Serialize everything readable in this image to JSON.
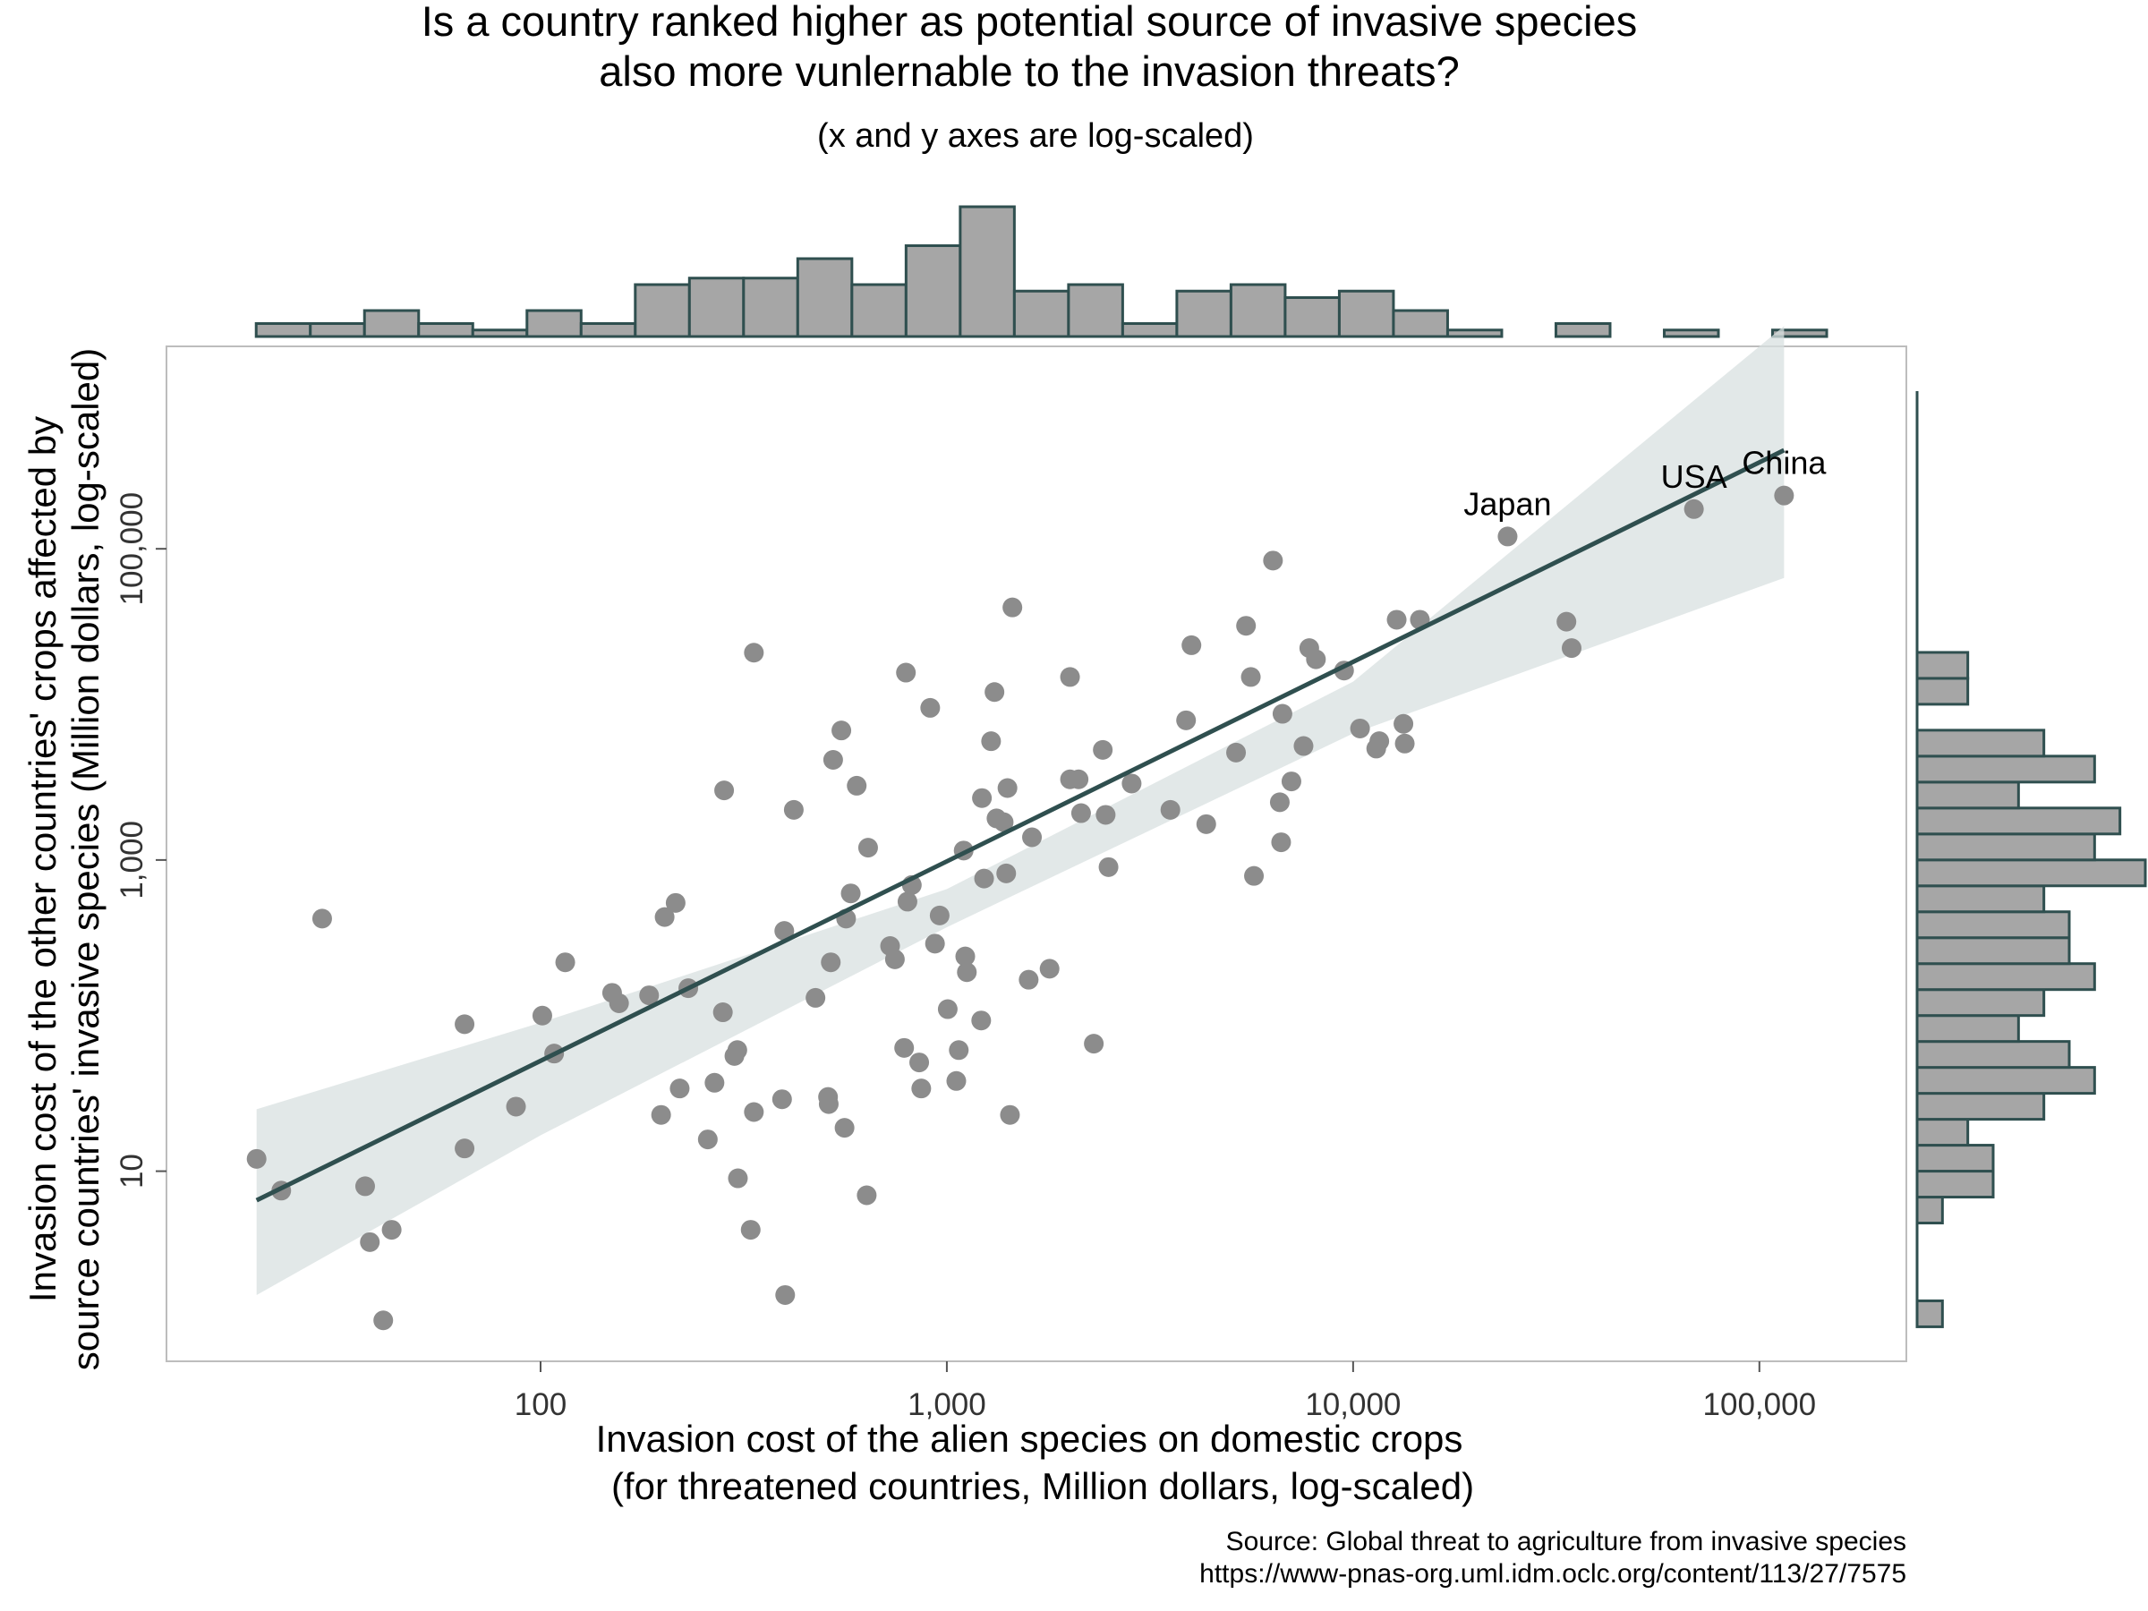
{
  "title_lines": [
    "Is a country ranked higher as potential source of invasive species",
    "also more vunlernable to the invasion threats?"
  ],
  "subtitle": "(x and y axes are log-scaled)",
  "source_lines": [
    "Source: Global threat to agriculture from invasive species",
    "https://www-pnas-org.uml.idm.oclc.org/content/113/27/7575"
  ],
  "colors": {
    "point": "#8c8c8c",
    "line": "#2f4f4f",
    "band": "#d8e0e0",
    "hist_fill": "#a6a6a6",
    "hist_stroke": "#2f4f4f",
    "frame": "#bdbdbd"
  },
  "chart_data": {
    "type": "scatter",
    "x_scale": "log",
    "y_scale": "log",
    "xlabel_lines": [
      "Invasion cost of the alien species on domestic crops",
      "(for threatened countries, Million dollars, log-scaled)"
    ],
    "ylabel_lines": [
      "Invasion cost of the other countries' crops affected by",
      "source countries' invasive species (Million dollars, log-scaled)"
    ],
    "xlim": [
      12,
      230000
    ],
    "ylim": [
      0.6,
      2000000
    ],
    "x_ticks": [
      100,
      1000,
      10000,
      100000
    ],
    "x_tick_labels": [
      "100",
      "1,000",
      "10,000",
      "100,000"
    ],
    "y_ticks": [
      10,
      1000,
      100000
    ],
    "y_tick_labels": [
      "10",
      "1,000",
      "100,000"
    ],
    "points": [
      {
        "x": 20,
        "y": 12
      },
      {
        "x": 23,
        "y": 7.5
      },
      {
        "x": 29,
        "y": 420
      },
      {
        "x": 37,
        "y": 8
      },
      {
        "x": 38,
        "y": 3.5
      },
      {
        "x": 41,
        "y": 1.1
      },
      {
        "x": 43,
        "y": 4.2
      },
      {
        "x": 65,
        "y": 88
      },
      {
        "x": 65,
        "y": 14
      },
      {
        "x": 87,
        "y": 26
      },
      {
        "x": 101,
        "y": 100
      },
      {
        "x": 108,
        "y": 57
      },
      {
        "x": 115,
        "y": 220
      },
      {
        "x": 150,
        "y": 140
      },
      {
        "x": 156,
        "y": 120
      },
      {
        "x": 185,
        "y": 135
      },
      {
        "x": 198,
        "y": 23
      },
      {
        "x": 202,
        "y": 430
      },
      {
        "x": 215,
        "y": 530
      },
      {
        "x": 220,
        "y": 34
      },
      {
        "x": 231,
        "y": 150
      },
      {
        "x": 258,
        "y": 16
      },
      {
        "x": 268,
        "y": 37
      },
      {
        "x": 281,
        "y": 105
      },
      {
        "x": 283,
        "y": 2800
      },
      {
        "x": 300,
        "y": 55
      },
      {
        "x": 305,
        "y": 60
      },
      {
        "x": 306,
        "y": 9
      },
      {
        "x": 329,
        "y": 4.2
      },
      {
        "x": 335,
        "y": 24
      },
      {
        "x": 335,
        "y": 21500
      },
      {
        "x": 393,
        "y": 29
      },
      {
        "x": 398,
        "y": 350
      },
      {
        "x": 400,
        "y": 1.6
      },
      {
        "x": 420,
        "y": 2100
      },
      {
        "x": 475,
        "y": 130
      },
      {
        "x": 510,
        "y": 30
      },
      {
        "x": 512,
        "y": 27
      },
      {
        "x": 518,
        "y": 220
      },
      {
        "x": 525,
        "y": 4400
      },
      {
        "x": 550,
        "y": 6800
      },
      {
        "x": 560,
        "y": 19
      },
      {
        "x": 565,
        "y": 420
      },
      {
        "x": 580,
        "y": 610
      },
      {
        "x": 600,
        "y": 3000
      },
      {
        "x": 635,
        "y": 7
      },
      {
        "x": 640,
        "y": 1200
      },
      {
        "x": 725,
        "y": 280
      },
      {
        "x": 745,
        "y": 230
      },
      {
        "x": 785,
        "y": 62
      },
      {
        "x": 793,
        "y": 16000
      },
      {
        "x": 800,
        "y": 540
      },
      {
        "x": 820,
        "y": 690
      },
      {
        "x": 855,
        "y": 50
      },
      {
        "x": 865,
        "y": 34
      },
      {
        "x": 910,
        "y": 9500
      },
      {
        "x": 935,
        "y": 290
      },
      {
        "x": 960,
        "y": 440
      },
      {
        "x": 1005,
        "y": 110
      },
      {
        "x": 1055,
        "y": 38
      },
      {
        "x": 1070,
        "y": 60
      },
      {
        "x": 1100,
        "y": 1150
      },
      {
        "x": 1110,
        "y": 240
      },
      {
        "x": 1120,
        "y": 190
      },
      {
        "x": 1215,
        "y": 93
      },
      {
        "x": 1220,
        "y": 2500
      },
      {
        "x": 1235,
        "y": 760
      },
      {
        "x": 1285,
        "y": 5800
      },
      {
        "x": 1310,
        "y": 12000
      },
      {
        "x": 1325,
        "y": 1850
      },
      {
        "x": 1380,
        "y": 1750
      },
      {
        "x": 1400,
        "y": 820
      },
      {
        "x": 1410,
        "y": 2900
      },
      {
        "x": 1430,
        "y": 23
      },
      {
        "x": 1450,
        "y": 42000
      },
      {
        "x": 1590,
        "y": 170
      },
      {
        "x": 1620,
        "y": 1400
      },
      {
        "x": 1790,
        "y": 200
      },
      {
        "x": 2010,
        "y": 15000
      },
      {
        "x": 2010,
        "y": 3300
      },
      {
        "x": 2110,
        "y": 3300
      },
      {
        "x": 2140,
        "y": 2000
      },
      {
        "x": 2300,
        "y": 66
      },
      {
        "x": 2420,
        "y": 5100
      },
      {
        "x": 2460,
        "y": 1950
      },
      {
        "x": 2500,
        "y": 900
      },
      {
        "x": 2850,
        "y": 3100
      },
      {
        "x": 3550,
        "y": 2100
      },
      {
        "x": 3880,
        "y": 7900
      },
      {
        "x": 4000,
        "y": 24000
      },
      {
        "x": 4350,
        "y": 1700
      },
      {
        "x": 5150,
        "y": 4900
      },
      {
        "x": 5450,
        "y": 32000
      },
      {
        "x": 5600,
        "y": 15000
      },
      {
        "x": 5700,
        "y": 790
      },
      {
        "x": 6350,
        "y": 84000
      },
      {
        "x": 6600,
        "y": 2350
      },
      {
        "x": 6650,
        "y": 1300
      },
      {
        "x": 6700,
        "y": 8700
      },
      {
        "x": 7050,
        "y": 3200
      },
      {
        "x": 7550,
        "y": 5400
      },
      {
        "x": 7800,
        "y": 23000
      },
      {
        "x": 8100,
        "y": 19500
      },
      {
        "x": 9500,
        "y": 16500
      },
      {
        "x": 10400,
        "y": 7000
      },
      {
        "x": 11400,
        "y": 5200
      },
      {
        "x": 11600,
        "y": 5800
      },
      {
        "x": 12800,
        "y": 35000
      },
      {
        "x": 13300,
        "y": 7500
      },
      {
        "x": 13400,
        "y": 5600
      },
      {
        "x": 14600,
        "y": 35000
      },
      {
        "x": 24000,
        "y": 120000
      },
      {
        "x": 33500,
        "y": 34000
      },
      {
        "x": 34500,
        "y": 23000
      },
      {
        "x": 69000,
        "y": 180000
      },
      {
        "x": 115000,
        "y": 220000
      }
    ],
    "annotations": [
      {
        "text": "Japan",
        "x": 24000,
        "y": 120000
      },
      {
        "text": "USA",
        "x": 69000,
        "y": 180000
      },
      {
        "text": "China",
        "x": 115000,
        "y": 220000
      }
    ],
    "fit_line": {
      "x": [
        20,
        115000
      ],
      "y": [
        6.5,
        430000
      ]
    },
    "conf_band": {
      "x": [
        20,
        100,
        1000,
        10000,
        115000
      ],
      "lower": [
        1.6,
        17,
        370,
        6500,
        65000
      ],
      "upper": [
        25,
        90,
        650,
        14000,
        2700000
      ]
    },
    "x_hist": {
      "bin_log_start": 1.3,
      "bin_width": 0.1333,
      "counts": [
        1,
        1,
        2,
        1,
        0.5,
        2,
        1,
        4,
        4.5,
        4.5,
        6,
        4,
        7,
        10,
        3.5,
        4,
        1,
        3.5,
        4,
        3,
        3.5,
        2,
        0.5,
        0,
        1,
        0,
        0.5,
        0,
        0.5
      ]
    },
    "y_hist": {
      "bin_log_start": 0,
      "bin_width": 0.1667,
      "counts": [
        1,
        0,
        0,
        0,
        1,
        3,
        3,
        2,
        5,
        7,
        6,
        4,
        5,
        7,
        6,
        6,
        5,
        9,
        7,
        8,
        4,
        7,
        5,
        0,
        2,
        2
      ]
    }
  }
}
